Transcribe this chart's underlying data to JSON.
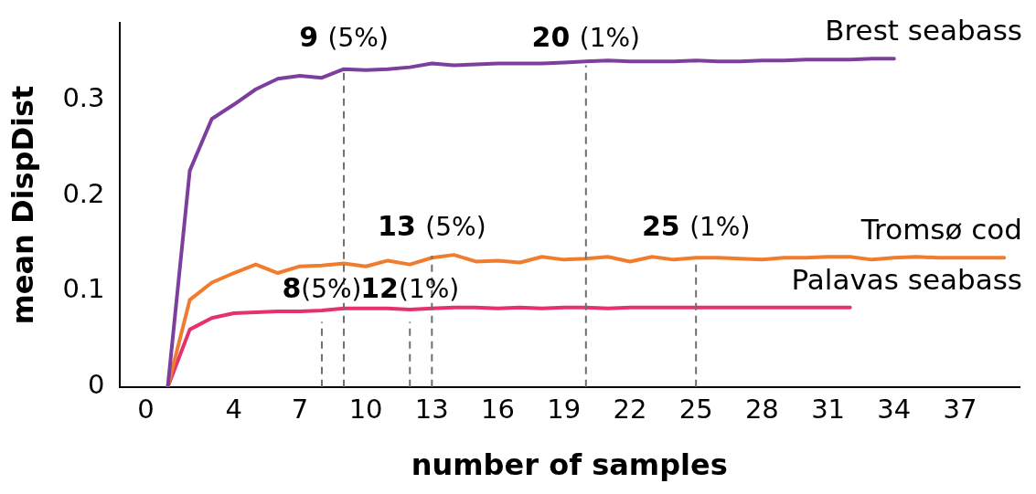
{
  "chart_data": {
    "type": "line",
    "xlabel": "number of samples",
    "ylabel": "mean DispDist",
    "xlim": [
      -1.2,
      39.7
    ],
    "xticks": [
      0,
      4,
      7,
      10,
      13,
      16,
      19,
      22,
      25,
      28,
      31,
      34,
      37
    ],
    "ylim": [
      0,
      0.38
    ],
    "yticks": [
      0,
      0.1,
      0.2,
      0.3
    ],
    "grid": false,
    "legend": false,
    "marker": "none",
    "line_style": "solid",
    "series": [
      {
        "name": "Brest seabass",
        "color": "#7d3f9e",
        "x": [
          1,
          2,
          3,
          4,
          5,
          6,
          7,
          8,
          9,
          10,
          11,
          12,
          13,
          14,
          15,
          16,
          17,
          18,
          19,
          20,
          21,
          22,
          23,
          24,
          25,
          26,
          27,
          28,
          29,
          30,
          31,
          32,
          33,
          34
        ],
        "values": [
          0,
          0.226,
          0.28,
          0.295,
          0.311,
          0.322,
          0.325,
          0.323,
          0.332,
          0.331,
          0.332,
          0.334,
          0.338,
          0.336,
          0.337,
          0.338,
          0.338,
          0.338,
          0.339,
          0.34,
          0.341,
          0.34,
          0.34,
          0.34,
          0.341,
          0.34,
          0.34,
          0.341,
          0.341,
          0.342,
          0.342,
          0.342,
          0.343,
          0.343
        ]
      },
      {
        "name": "Tromsø cod",
        "color": "#ef7d2d",
        "x": [
          1,
          2,
          3,
          4,
          5,
          6,
          7,
          8,
          9,
          10,
          11,
          12,
          13,
          14,
          15,
          16,
          17,
          18,
          19,
          20,
          21,
          22,
          23,
          24,
          25,
          26,
          27,
          28,
          29,
          30,
          31,
          32,
          33,
          34,
          35,
          36,
          37,
          38,
          39
        ],
        "values": [
          0,
          0.091,
          0.109,
          0.119,
          0.128,
          0.119,
          0.126,
          0.127,
          0.129,
          0.126,
          0.132,
          0.128,
          0.135,
          0.138,
          0.131,
          0.132,
          0.13,
          0.136,
          0.133,
          0.134,
          0.136,
          0.131,
          0.136,
          0.133,
          0.135,
          0.135,
          0.134,
          0.133,
          0.135,
          0.135,
          0.136,
          0.136,
          0.133,
          0.135,
          0.136,
          0.135,
          0.135,
          0.135,
          0.135
        ]
      },
      {
        "name": "Palavas seabass",
        "color": "#e5316e",
        "x": [
          1,
          2,
          3,
          4,
          5,
          6,
          7,
          8,
          9,
          10,
          11,
          12,
          13,
          14,
          15,
          16,
          17,
          18,
          19,
          20,
          21,
          22,
          23,
          24,
          25,
          26,
          27,
          28,
          29,
          30,
          31,
          32
        ],
        "values": [
          0,
          0.06,
          0.072,
          0.077,
          0.078,
          0.079,
          0.079,
          0.08,
          0.082,
          0.082,
          0.082,
          0.081,
          0.082,
          0.083,
          0.083,
          0.082,
          0.083,
          0.082,
          0.083,
          0.083,
          0.082,
          0.083,
          0.083,
          0.083,
          0.083,
          0.083,
          0.083,
          0.083,
          0.083,
          0.083,
          0.083,
          0.083
        ]
      }
    ],
    "ref_lines": [
      {
        "axis": "x",
        "value": 9,
        "label": "9 (5%)",
        "color": "#707070",
        "line_style": "dashed"
      },
      {
        "axis": "x",
        "value": 20,
        "label": "20 (1%)",
        "color": "#707070",
        "line_style": "dashed"
      },
      {
        "axis": "x",
        "value": 13,
        "label": "13 (5%)",
        "color": "#707070",
        "line_style": "dashed"
      },
      {
        "axis": "x",
        "value": 25,
        "label": "25 (1%)",
        "color": "#707070",
        "line_style": "dashed"
      },
      {
        "axis": "x",
        "value": 12,
        "label": "12(1%)",
        "color": "#707070",
        "line_style": "dashed"
      },
      {
        "axis": "x",
        "value": 8,
        "label": "8(5%)",
        "color": "#707070",
        "line_style": "dashed"
      }
    ]
  }
}
